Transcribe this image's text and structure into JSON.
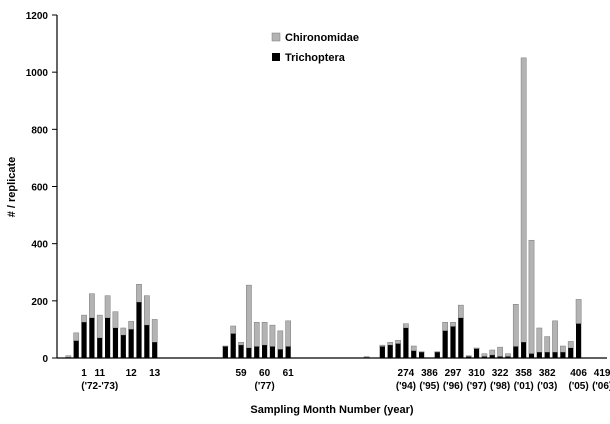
{
  "chart_data": {
    "type": "bar",
    "stacking": "stacked",
    "xlabel": "Sampling Month Number  (year)",
    "ylabel": "# / replicate",
    "ylim": [
      0,
      1200
    ],
    "yticks": [
      "0",
      "200",
      "400",
      "600",
      "800",
      "1000",
      "1200"
    ],
    "grid": false,
    "legend_position": "top-center",
    "series": [
      {
        "name": "Chironomidae",
        "color": "#b3b3b3"
      },
      {
        "name": "Trichoptera",
        "color": "#000000"
      }
    ],
    "tick_labels": [
      {
        "slot": 3,
        "lines": [
          "1"
        ]
      },
      {
        "slot": 5,
        "lines": [
          "11",
          "('72-'73)"
        ]
      },
      {
        "slot": 9,
        "lines": [
          "12"
        ]
      },
      {
        "slot": 12,
        "lines": [
          "13"
        ]
      },
      {
        "slot": 23,
        "lines": [
          "59"
        ]
      },
      {
        "slot": 26,
        "lines": [
          "60",
          "('77)"
        ]
      },
      {
        "slot": 29,
        "lines": [
          "61"
        ]
      },
      {
        "slot": 44,
        "lines": [
          "274",
          "('94)"
        ]
      },
      {
        "slot": 47,
        "lines": [
          "386",
          "('95)"
        ]
      },
      {
        "slot": 50,
        "lines": [
          "297",
          "('96)"
        ]
      },
      {
        "slot": 53,
        "lines": [
          "310",
          "('97)"
        ]
      },
      {
        "slot": 56,
        "lines": [
          "322",
          "('98)"
        ]
      },
      {
        "slot": 59,
        "lines": [
          "358",
          "('01)"
        ]
      },
      {
        "slot": 62,
        "lines": [
          "382",
          "('03)"
        ]
      },
      {
        "slot": 66,
        "lines": [
          "406",
          "('05)"
        ]
      },
      {
        "slot": 69,
        "lines": [
          "419",
          "('06)"
        ]
      }
    ],
    "bars": [
      {
        "slot": 1,
        "trichoptera": 2,
        "total": 8
      },
      {
        "slot": 2,
        "trichoptera": 60,
        "total": 88
      },
      {
        "slot": 3,
        "trichoptera": 125,
        "total": 150
      },
      {
        "slot": 4,
        "trichoptera": 140,
        "total": 225
      },
      {
        "slot": 5,
        "trichoptera": 70,
        "total": 150
      },
      {
        "slot": 6,
        "trichoptera": 140,
        "total": 218
      },
      {
        "slot": 7,
        "trichoptera": 105,
        "total": 162
      },
      {
        "slot": 8,
        "trichoptera": 80,
        "total": 105
      },
      {
        "slot": 9,
        "trichoptera": 100,
        "total": 128
      },
      {
        "slot": 10,
        "trichoptera": 195,
        "total": 258
      },
      {
        "slot": 11,
        "trichoptera": 115,
        "total": 218
      },
      {
        "slot": 12,
        "trichoptera": 55,
        "total": 135
      },
      {
        "slot": 21,
        "trichoptera": 40,
        "total": 42
      },
      {
        "slot": 22,
        "trichoptera": 85,
        "total": 112
      },
      {
        "slot": 23,
        "trichoptera": 45,
        "total": 55
      },
      {
        "slot": 24,
        "trichoptera": 35,
        "total": 255
      },
      {
        "slot": 25,
        "trichoptera": 40,
        "total": 125
      },
      {
        "slot": 26,
        "trichoptera": 45,
        "total": 125
      },
      {
        "slot": 27,
        "trichoptera": 40,
        "total": 115
      },
      {
        "slot": 28,
        "trichoptera": 30,
        "total": 95
      },
      {
        "slot": 29,
        "trichoptera": 40,
        "total": 130
      },
      {
        "slot": 39,
        "trichoptera": 2,
        "total": 5
      },
      {
        "slot": 41,
        "trichoptera": 40,
        "total": 45
      },
      {
        "slot": 42,
        "trichoptera": 45,
        "total": 55
      },
      {
        "slot": 43,
        "trichoptera": 50,
        "total": 62
      },
      {
        "slot": 44,
        "trichoptera": 105,
        "total": 120
      },
      {
        "slot": 45,
        "trichoptera": 25,
        "total": 42
      },
      {
        "slot": 46,
        "trichoptera": 20,
        "total": 22
      },
      {
        "slot": 48,
        "trichoptera": 20,
        "total": 22
      },
      {
        "slot": 49,
        "trichoptera": 95,
        "total": 125
      },
      {
        "slot": 50,
        "trichoptera": 110,
        "total": 125
      },
      {
        "slot": 51,
        "trichoptera": 140,
        "total": 185
      },
      {
        "slot": 52,
        "trichoptera": 5,
        "total": 8
      },
      {
        "slot": 53,
        "trichoptera": 32,
        "total": 35
      },
      {
        "slot": 54,
        "trichoptera": 5,
        "total": 15
      },
      {
        "slot": 55,
        "trichoptera": 10,
        "total": 28
      },
      {
        "slot": 56,
        "trichoptera": 5,
        "total": 38
      },
      {
        "slot": 57,
        "trichoptera": 5,
        "total": 15
      },
      {
        "slot": 58,
        "trichoptera": 40,
        "total": 188
      },
      {
        "slot": 59,
        "trichoptera": 55,
        "total": 1050
      },
      {
        "slot": 60,
        "trichoptera": 15,
        "total": 412
      },
      {
        "slot": 61,
        "trichoptera": 20,
        "total": 105
      },
      {
        "slot": 62,
        "trichoptera": 20,
        "total": 75
      },
      {
        "slot": 63,
        "trichoptera": 20,
        "total": 130
      },
      {
        "slot": 64,
        "trichoptera": 20,
        "total": 42
      },
      {
        "slot": 65,
        "trichoptera": 35,
        "total": 58
      },
      {
        "slot": 66,
        "trichoptera": 120,
        "total": 205
      }
    ]
  }
}
